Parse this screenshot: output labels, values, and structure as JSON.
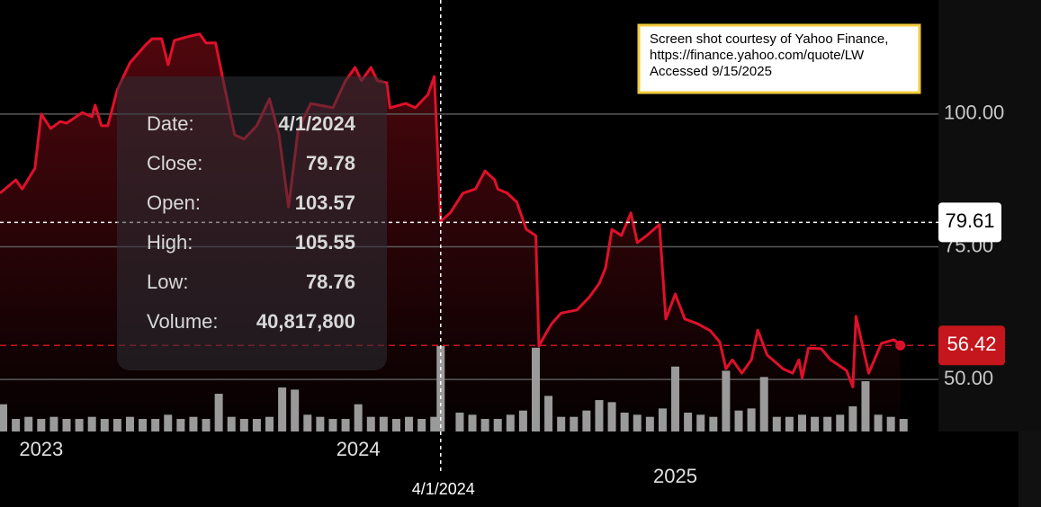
{
  "chart_data": {
    "type": "line",
    "xlim": [
      2022.87,
      2025.83
    ],
    "xticks": [
      2023,
      2024,
      2025
    ],
    "ylim": [
      40.2,
      121.5
    ],
    "yticks": [
      {
        "value": 100,
        "label": "100.00"
      },
      {
        "value": 75,
        "label": "75.00"
      },
      {
        "value": 50,
        "label": "50.00"
      }
    ],
    "y2lim": [
      0,
      206000000
    ],
    "grid": true,
    "series": [
      {
        "color": "#e0102a",
        "x": [
          2022.87,
          2022.92,
          2022.94,
          2022.98,
          2023.0,
          2023.03,
          2023.06,
          2023.08,
          2023.13,
          2023.16,
          2023.17,
          2023.19,
          2023.21,
          2023.24,
          2023.28,
          2023.33,
          2023.35,
          2023.38,
          2023.4,
          2023.42,
          2023.47,
          2023.5,
          2023.52,
          2023.55,
          2023.58,
          2023.61,
          2023.64,
          2023.68,
          2023.72,
          2023.75,
          2023.78,
          2023.81,
          2023.85,
          2023.92,
          2023.96,
          2023.99,
          2024.01,
          2024.04,
          2024.06,
          2024.09,
          2024.1,
          2024.15,
          2024.18,
          2024.22,
          2024.24,
          2024.26,
          2024.29,
          2024.33,
          2024.37,
          2024.4,
          2024.43,
          2024.44,
          2024.47,
          2024.5,
          2024.53,
          2024.56,
          2024.57,
          2024.59,
          2024.61,
          2024.64,
          2024.69,
          2024.73,
          2024.76,
          2024.78,
          2024.8,
          2024.83,
          2024.86,
          2024.88,
          2024.91,
          2024.95,
          2024.97,
          2025.0,
          2025.03,
          2025.07,
          2025.11,
          2025.14,
          2025.16,
          2025.18,
          2025.21,
          2025.24,
          2025.26,
          2025.29,
          2025.34,
          2025.37,
          2025.39,
          2025.4,
          2025.42,
          2025.46,
          2025.49,
          2025.54,
          2025.56,
          2025.57,
          2025.61,
          2025.65,
          2025.69,
          2025.71
        ],
        "values": [
          85.1,
          87.6,
          85.9,
          89.8,
          100,
          97.3,
          98.6,
          98.3,
          100.3,
          99.5,
          101.7,
          97.8,
          97.8,
          104.6,
          109.7,
          113.1,
          114.2,
          114.2,
          109.3,
          113.9,
          114.7,
          115.1,
          113.4,
          113.4,
          104.6,
          96.1,
          95.3,
          97.8,
          102.9,
          96.1,
          82.5,
          96.9,
          102.0,
          101.2,
          106.3,
          108.8,
          106.3,
          108.8,
          106.3,
          105.9,
          101.2,
          102.0,
          101.2,
          103.7,
          107.1,
          79.78,
          81.4,
          85.1,
          85.9,
          89.3,
          87.6,
          85.9,
          85.1,
          83.4,
          78.3,
          77.1,
          56.3,
          58.5,
          60.5,
          62.5,
          63.1,
          65.6,
          68.1,
          71.0,
          78.3,
          77.1,
          81.4,
          75.8,
          77.1,
          79.2,
          61.4,
          66.1,
          61.4,
          60.5,
          59.2,
          57.1,
          52.0,
          53.7,
          51.2,
          53.7,
          59.3,
          54.6,
          52.0,
          51.2,
          53.7,
          50.3,
          55.9,
          55.8,
          53.7,
          51.7,
          48.6,
          61.9,
          51.2,
          56.8,
          57.5,
          56.42
        ]
      },
      {
        "color": "#9a9a9a",
        "axis": "y2",
        "x": [
          2022.88,
          2022.92,
          2022.96,
          2023,
          2023.04,
          2023.08,
          2023.12,
          2023.16,
          2023.2,
          2023.24,
          2023.28,
          2023.32,
          2023.36,
          2023.4,
          2023.44,
          2023.48,
          2023.52,
          2023.56,
          2023.6,
          2023.64,
          2023.68,
          2023.72,
          2023.76,
          2023.8,
          2023.84,
          2023.88,
          2023.92,
          2023.96,
          2024,
          2024.04,
          2024.08,
          2024.12,
          2024.16,
          2024.2,
          2024.24,
          2024.26,
          2024.32,
          2024.36,
          2024.4,
          2024.44,
          2024.48,
          2024.52,
          2024.56,
          2024.6,
          2024.64,
          2024.68,
          2024.72,
          2024.76,
          2024.8,
          2024.84,
          2024.88,
          2024.92,
          2024.96,
          2025,
          2025.04,
          2025.08,
          2025.12,
          2025.16,
          2025.2,
          2025.24,
          2025.28,
          2025.32,
          2025.36,
          2025.4,
          2025.44,
          2025.48,
          2025.52,
          2025.56,
          2025.6,
          2025.64,
          2025.68,
          2025.72
        ],
        "values": [
          13000000,
          6000000,
          7000000,
          6000000,
          7000000,
          6000000,
          6000000,
          7000000,
          6000000,
          6000000,
          7000000,
          6000000,
          6000000,
          8000000,
          6000000,
          7000000,
          6000000,
          18000000,
          7000000,
          6000000,
          6000000,
          7000000,
          21000000,
          20000000,
          8000000,
          7000000,
          6000000,
          6000000,
          13000000,
          7000000,
          7000000,
          6000000,
          7000000,
          6000000,
          7000000,
          40817800,
          9000000,
          8000000,
          6000000,
          6000000,
          8000000,
          10000000,
          40000000,
          17000000,
          7000000,
          7000000,
          10000000,
          15000000,
          14000000,
          9000000,
          8000000,
          7000000,
          11000000,
          31000000,
          9000000,
          8000000,
          7000000,
          29000000,
          10000000,
          11000000,
          26000000,
          7000000,
          7000000,
          8000000,
          7000000,
          7000000,
          8000000,
          12000000,
          24000000,
          8000000,
          7000000,
          6000000
        ]
      }
    ],
    "crosshair": {
      "x": 2024.26,
      "x_label": "4/1/2024",
      "y": 79.61
    },
    "last_price": 56.42,
    "tooltip": [
      {
        "label": "Date:",
        "value": "4/1/2024"
      },
      {
        "label": "Close:",
        "value": "79.78"
      },
      {
        "label": "Open:",
        "value": "103.57"
      },
      {
        "label": "High:",
        "value": "105.55"
      },
      {
        "label": "Low:",
        "value": "78.76"
      },
      {
        "label": "Volume:",
        "value": "40,817,800"
      }
    ]
  },
  "attribution": [
    "Screen shot courtesy of Yahoo Finance,",
    "https://finance.yahoo.com/quote/LW",
    "Accessed 9/15/2025"
  ]
}
